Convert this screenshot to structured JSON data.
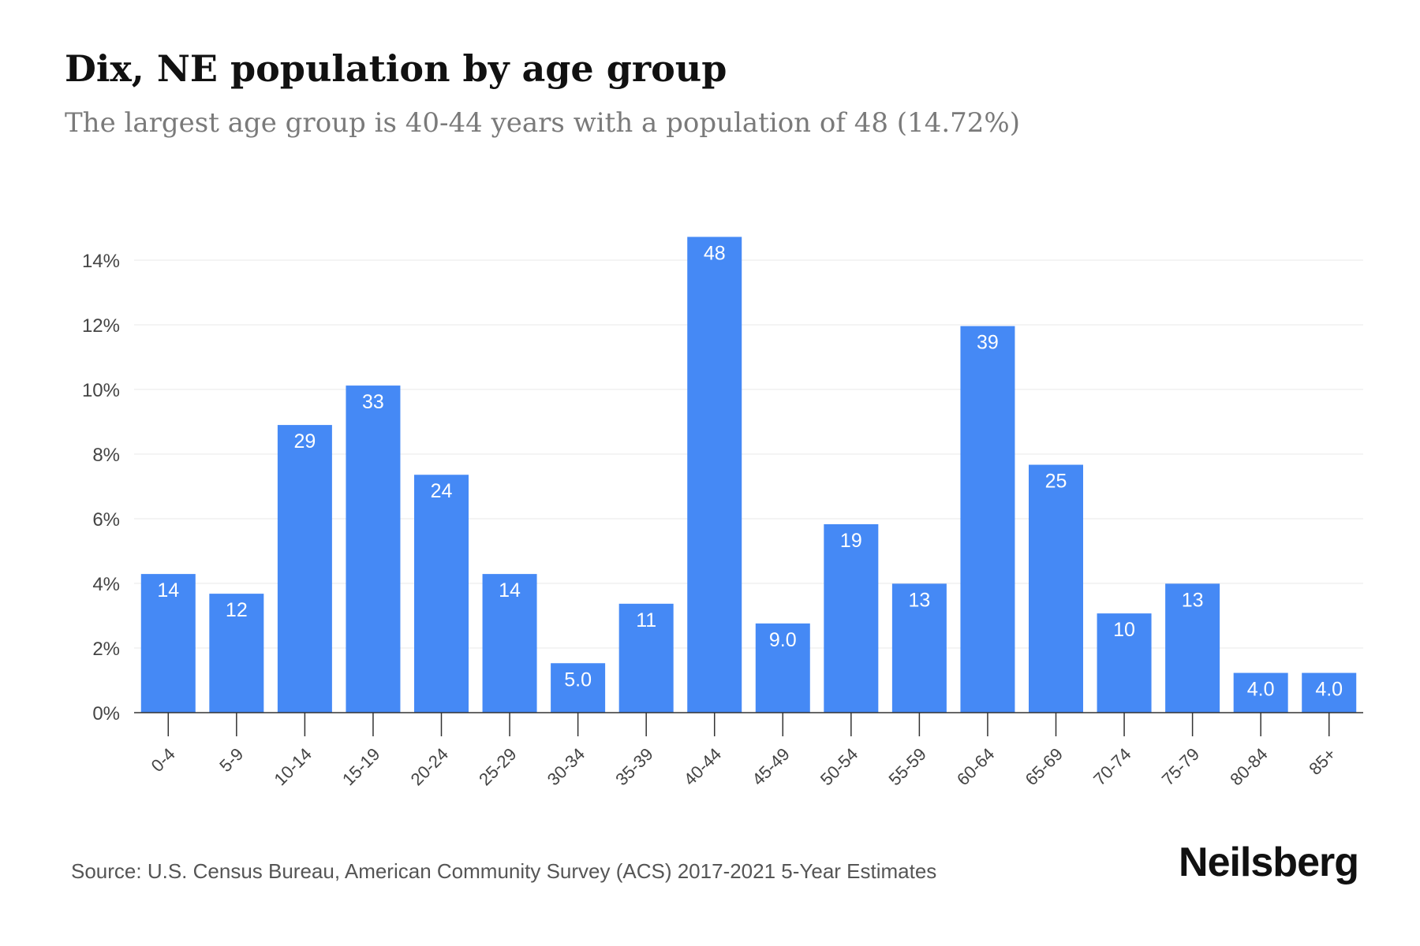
{
  "title": "Dix, NE population by age group",
  "subtitle": "The largest age group is 40-44 years with a population of 48 (14.72%)",
  "source": "Source: U.S. Census Bureau, American Community Survey (ACS) 2017-2021 5-Year Estimates",
  "brand": "Neilsberg",
  "colors": {
    "bar": "#4589f5",
    "grid": "#e8e8e8",
    "axis": "#333333"
  },
  "chart_data": {
    "type": "bar",
    "title": "Dix, NE population by age group",
    "categories": [
      "0-4",
      "5-9",
      "10-14",
      "15-19",
      "20-24",
      "25-29",
      "30-34",
      "35-39",
      "40-44",
      "45-49",
      "50-54",
      "55-59",
      "60-64",
      "65-69",
      "70-74",
      "75-79",
      "80-84",
      "85+"
    ],
    "values": [
      4.29,
      3.68,
      8.9,
      10.12,
      7.36,
      4.29,
      1.53,
      3.37,
      14.72,
      2.76,
      5.83,
      3.99,
      11.96,
      7.67,
      3.07,
      3.99,
      1.23,
      1.23
    ],
    "data_labels": [
      "14",
      "12",
      "29",
      "33",
      "24",
      "14",
      "5.0",
      "11",
      "48",
      "9.0",
      "19",
      "13",
      "39",
      "25",
      "10",
      "13",
      "4.0",
      "4.0"
    ],
    "y_ticks": [
      "0%",
      "2%",
      "4%",
      "6%",
      "8%",
      "10%",
      "12%",
      "14%"
    ],
    "ylim": [
      0,
      14.72
    ],
    "y_unit": "%",
    "grid": true,
    "legend": "none"
  }
}
